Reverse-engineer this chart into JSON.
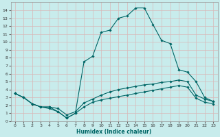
{
  "xlabel": "Humidex (Indice chaleur)",
  "bg_color": "#c8ecec",
  "grid_color": "#d8b8b8",
  "line_color": "#006666",
  "xlim": [
    -0.5,
    23.5
  ],
  "ylim": [
    0,
    15
  ],
  "x_ticks": [
    0,
    1,
    2,
    3,
    4,
    5,
    6,
    7,
    8,
    9,
    10,
    11,
    12,
    13,
    14,
    15,
    16,
    17,
    18,
    19,
    20,
    21,
    22,
    23
  ],
  "y_ticks": [
    0,
    1,
    2,
    3,
    4,
    5,
    6,
    7,
    8,
    9,
    10,
    11,
    12,
    13,
    14
  ],
  "peak_x": [
    0,
    1,
    2,
    3,
    4,
    5,
    6,
    7,
    8,
    9,
    10,
    11,
    12,
    13,
    14,
    15,
    16,
    17,
    18,
    19,
    20,
    21,
    22,
    23
  ],
  "peak_y": [
    3.5,
    3.0,
    2.2,
    1.8,
    1.6,
    1.2,
    0.4,
    1.0,
    7.5,
    8.2,
    11.2,
    11.5,
    13.0,
    13.3,
    14.3,
    14.3,
    12.2,
    10.2,
    9.8,
    6.5,
    6.2,
    5.0,
    3.0,
    2.5
  ],
  "upper_x": [
    0,
    1,
    2,
    3,
    4,
    5,
    6,
    7,
    8,
    9,
    10,
    11,
    12,
    13,
    14,
    15,
    16,
    17,
    18,
    19,
    20,
    21,
    22,
    23
  ],
  "upper_y": [
    3.5,
    3.0,
    2.2,
    1.8,
    1.8,
    1.6,
    0.8,
    1.2,
    2.3,
    2.8,
    3.3,
    3.7,
    4.0,
    4.2,
    4.4,
    4.6,
    4.7,
    4.9,
    5.0,
    5.2,
    5.0,
    3.3,
    2.8,
    2.5
  ],
  "lower_x": [
    0,
    1,
    2,
    3,
    4,
    5,
    6,
    7,
    8,
    9,
    10,
    11,
    12,
    13,
    14,
    15,
    16,
    17,
    18,
    19,
    20,
    21,
    22,
    23
  ],
  "lower_y": [
    3.5,
    3.0,
    2.2,
    1.8,
    1.8,
    1.2,
    0.4,
    1.0,
    1.8,
    2.4,
    2.7,
    2.9,
    3.1,
    3.3,
    3.5,
    3.7,
    3.9,
    4.1,
    4.3,
    4.5,
    4.3,
    2.9,
    2.4,
    2.2
  ]
}
